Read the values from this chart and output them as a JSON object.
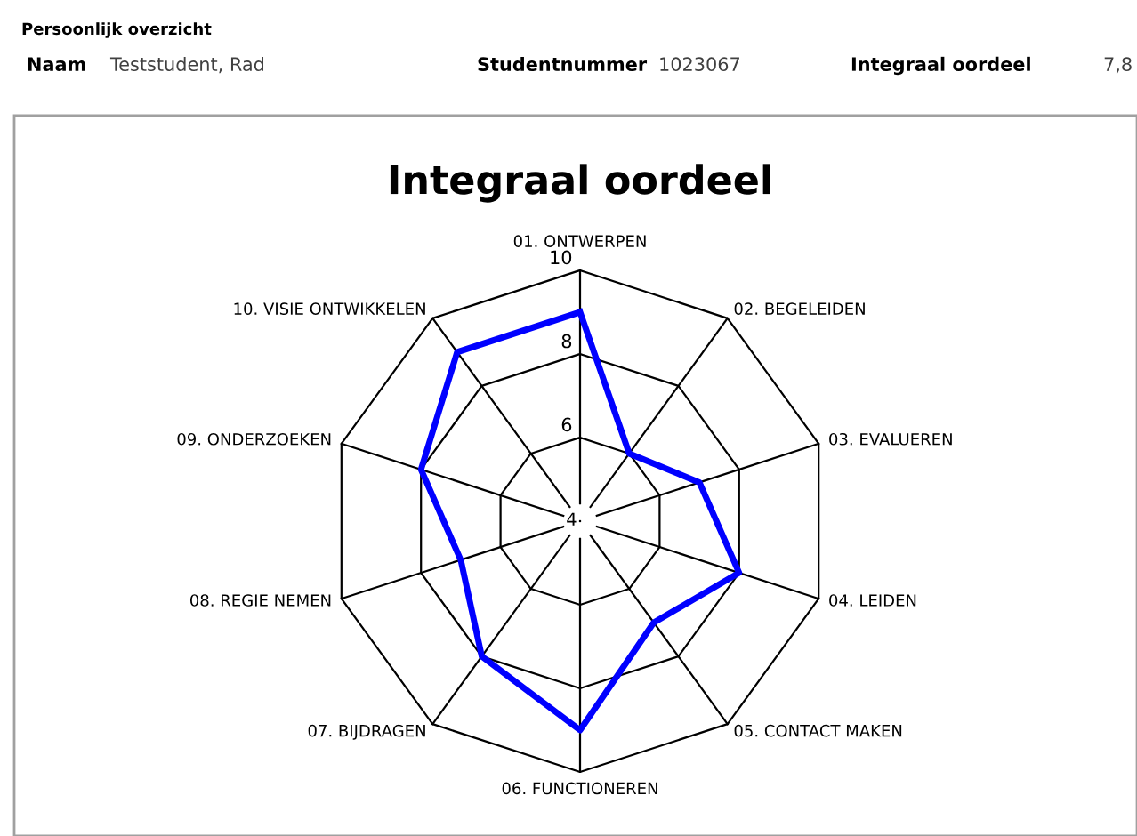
{
  "chart_data": {
    "type": "radar",
    "title": "Integraal oordeel",
    "categories": [
      "01. ONTWERPEN",
      "02. BEGELEIDEN",
      "03. EVALUEREN",
      "04. LEIDEN",
      "05. CONTACT MAKEN",
      "06. FUNCTIONEREN",
      "07. BIJDRAGEN",
      "08. REGIE NEMEN",
      "09. ONDERZOEKEN",
      "10. VISIE ONTWIKKELEN"
    ],
    "series": [
      {
        "color": "#0000ff",
        "values": [
          9,
          6,
          7,
          8,
          7,
          9,
          8,
          7,
          8,
          9
        ]
      }
    ],
    "ylim": [
      4,
      10
    ],
    "yticks": [
      4,
      6,
      8,
      10
    ],
    "grid": true,
    "legend": false,
    "marker": "none",
    "line_style": "solid",
    "annotations": [
      "Persoonlijk overzicht",
      "Naam",
      "Teststudent, Rad",
      "Studentnummer",
      "1023067",
      "Integraal oordeel",
      "7,8"
    ]
  }
}
